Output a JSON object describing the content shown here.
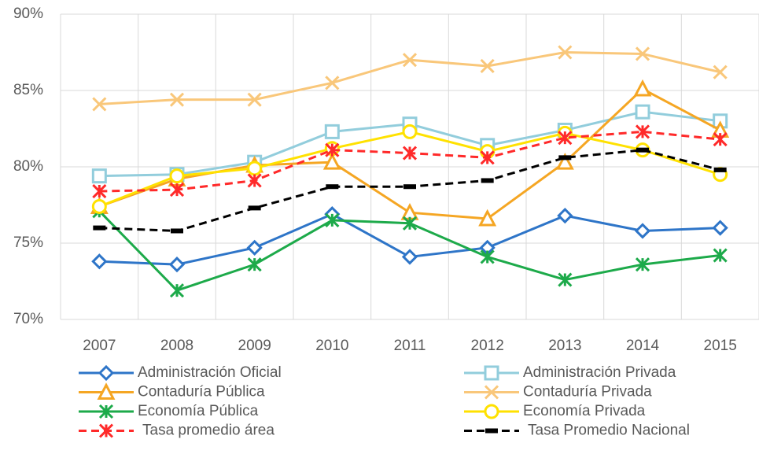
{
  "chart_data": {
    "type": "line",
    "categories": [
      "2007",
      "2008",
      "2009",
      "2010",
      "2011",
      "2012",
      "2013",
      "2014",
      "2015"
    ],
    "ylim": [
      70,
      90
    ],
    "yticks": [
      {
        "value": 70,
        "label": "70%"
      },
      {
        "value": 75,
        "label": "75%"
      },
      {
        "value": 80,
        "label": "80%"
      },
      {
        "value": 85,
        "label": "85%"
      },
      {
        "value": 90,
        "label": "90%"
      }
    ],
    "grid": true,
    "legend": "bottom",
    "series": [
      {
        "name": "Administración Oficial",
        "color": "#2e75c8",
        "marker": "diamond",
        "dashed": false,
        "values": [
          73.8,
          73.6,
          74.7,
          76.9,
          74.1,
          74.7,
          76.8,
          75.8,
          76.0
        ]
      },
      {
        "name": "Administración Privada",
        "color": "#92cddc",
        "marker": "square",
        "dashed": false,
        "values": [
          79.4,
          79.5,
          80.3,
          82.3,
          82.8,
          81.4,
          82.4,
          83.6,
          83.0
        ]
      },
      {
        "name": "Contaduría Pública",
        "color": "#f5a623",
        "marker": "triangle",
        "dashed": false,
        "values": [
          77.4,
          79.2,
          80.1,
          80.3,
          77.0,
          76.6,
          80.3,
          85.1,
          82.4
        ]
      },
      {
        "name": "Contaduría Privada",
        "color": "#f9c77a",
        "marker": "x",
        "dashed": false,
        "values": [
          84.1,
          84.4,
          84.4,
          85.5,
          87.0,
          86.6,
          87.5,
          87.4,
          86.2
        ]
      },
      {
        "name": "Economía Pública",
        "color": "#1daa4a",
        "marker": "star",
        "dashed": false,
        "values": [
          77.1,
          71.9,
          73.6,
          76.5,
          76.3,
          74.1,
          72.6,
          73.6,
          74.2
        ]
      },
      {
        "name": "Economía Privada",
        "color": "#ffe100",
        "marker": "circle",
        "dashed": false,
        "values": [
          77.4,
          79.4,
          79.9,
          81.2,
          82.3,
          81.0,
          82.2,
          81.1,
          79.5
        ]
      },
      {
        "name": "Tasa promedio área",
        "color": "#ff2a2a",
        "marker": "star",
        "dashed": true,
        "values": [
          78.4,
          78.5,
          79.1,
          81.1,
          80.9,
          80.6,
          81.9,
          82.3,
          81.8
        ]
      },
      {
        "name": "Tasa Promedio Nacional",
        "color": "#000000",
        "marker": "bar",
        "dashed": true,
        "values": [
          76.0,
          75.8,
          77.3,
          78.7,
          78.7,
          79.1,
          80.6,
          81.1,
          79.8
        ]
      }
    ]
  }
}
